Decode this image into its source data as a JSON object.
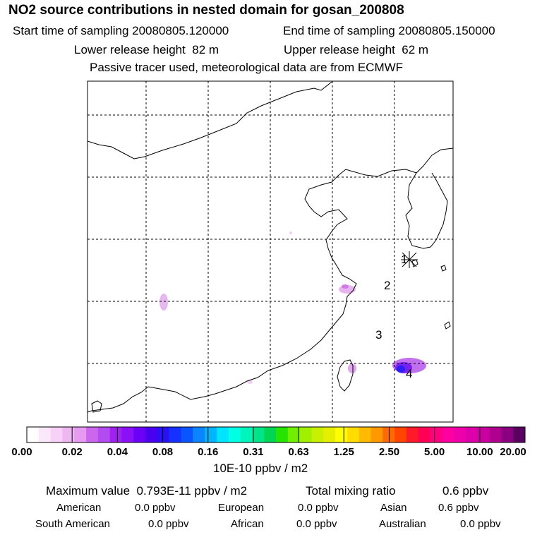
{
  "title": "NO2 source contributions in nested domain for gosan_200808",
  "header": {
    "start_label": "Start time of sampling",
    "start_value": "20080805.120000",
    "end_label": "End time of sampling",
    "end_value": "20080805.150000",
    "lower_label": "Lower release height",
    "lower_value": "82 m",
    "upper_label": "Upper release height",
    "upper_value": "62 m",
    "note": "Passive tracer used, meteorological data are from ECMWF"
  },
  "map": {
    "markers": [
      "1",
      "2",
      "3",
      "4"
    ]
  },
  "colorbar": {
    "ticks": [
      "0.00",
      "0.02",
      "0.04",
      "0.08",
      "0.16",
      "0.31",
      "0.63",
      "1.25",
      "2.50",
      "5.00",
      "10.00",
      "20.00"
    ],
    "units": "10E-10 ppbv / m2",
    "colors": [
      "#ffffff",
      "#fbe8fb",
      "#f6d2f6",
      "#efb7f2",
      "#e69bef",
      "#cc66ee",
      "#b24cf0",
      "#a020f0",
      "#8a10f5",
      "#6a00f5",
      "#4a00f0",
      "#2a10f5",
      "#1530ff",
      "#0a55ff",
      "#0a85ff",
      "#00b5ff",
      "#00e5ff",
      "#00ffe5",
      "#00f5bb",
      "#00e58a",
      "#00d555",
      "#25e500",
      "#70f000",
      "#a0f000",
      "#c8f000",
      "#e5f000",
      "#ffff00",
      "#ffdd00",
      "#ffbb00",
      "#ff9900",
      "#ff6a00",
      "#ff4500",
      "#ff1a2a",
      "#ff0055",
      "#ff0080",
      "#ff00a0",
      "#ee00aa",
      "#dd00aa",
      "#cc00a0",
      "#b00090",
      "#8a0080",
      "#5a0060"
    ]
  },
  "stats": {
    "max_label": "Maximum value",
    "max_value": "0.793E-11 ppbv / m2",
    "total_label": "Total mixing ratio",
    "total_value": "0.6 ppbv",
    "american_label": "American",
    "american_value": "0.0 ppbv",
    "european_label": "European",
    "european_value": "0.0 ppbv",
    "asian_label": "Asian",
    "asian_value": "0.6 ppbv",
    "south_american_label": "South American",
    "south_american_value": "0.0 ppbv",
    "african_label": "African",
    "african_value": "0.0 ppbv",
    "australian_label": "Australian",
    "australian_value": "0.0 ppbv"
  }
}
